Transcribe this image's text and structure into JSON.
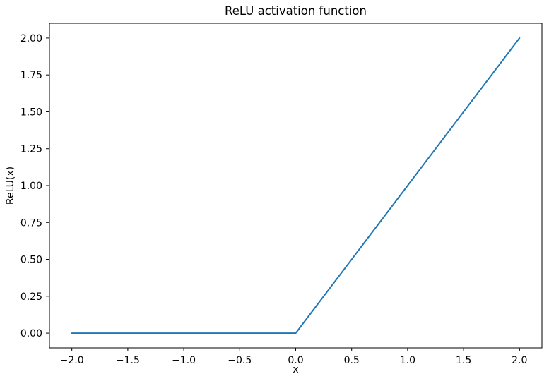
{
  "chart_data": {
    "type": "line",
    "title": "ReLU activation function",
    "xlabel": "x",
    "ylabel": "ReLU(x)",
    "xlim": [
      -2.2,
      2.2
    ],
    "ylim": [
      -0.1,
      2.1
    ],
    "grid": false,
    "legend": null,
    "background_color": "#ffffff",
    "spine_color": "#000000",
    "xticks": {
      "values": [
        -2.0,
        -1.5,
        -1.0,
        -0.5,
        0.0,
        0.5,
        1.0,
        1.5,
        2.0
      ],
      "labels": [
        "−2.0",
        "−1.5",
        "−1.0",
        "−0.5",
        "0.0",
        "0.5",
        "1.0",
        "1.5",
        "2.0"
      ]
    },
    "yticks": {
      "values": [
        0.0,
        0.25,
        0.5,
        0.75,
        1.0,
        1.25,
        1.5,
        1.75,
        2.0
      ],
      "labels": [
        "0.00",
        "0.25",
        "0.50",
        "0.75",
        "1.00",
        "1.25",
        "1.50",
        "1.75",
        "2.00"
      ]
    },
    "series": [
      {
        "name": "ReLU",
        "color": "#1f77b4",
        "x": [
          -2.0,
          -1.5,
          -1.0,
          -0.5,
          0.0,
          0.5,
          1.0,
          1.5,
          2.0
        ],
        "y": [
          0.0,
          0.0,
          0.0,
          0.0,
          0.0,
          0.5,
          1.0,
          1.5,
          2.0
        ]
      }
    ]
  }
}
